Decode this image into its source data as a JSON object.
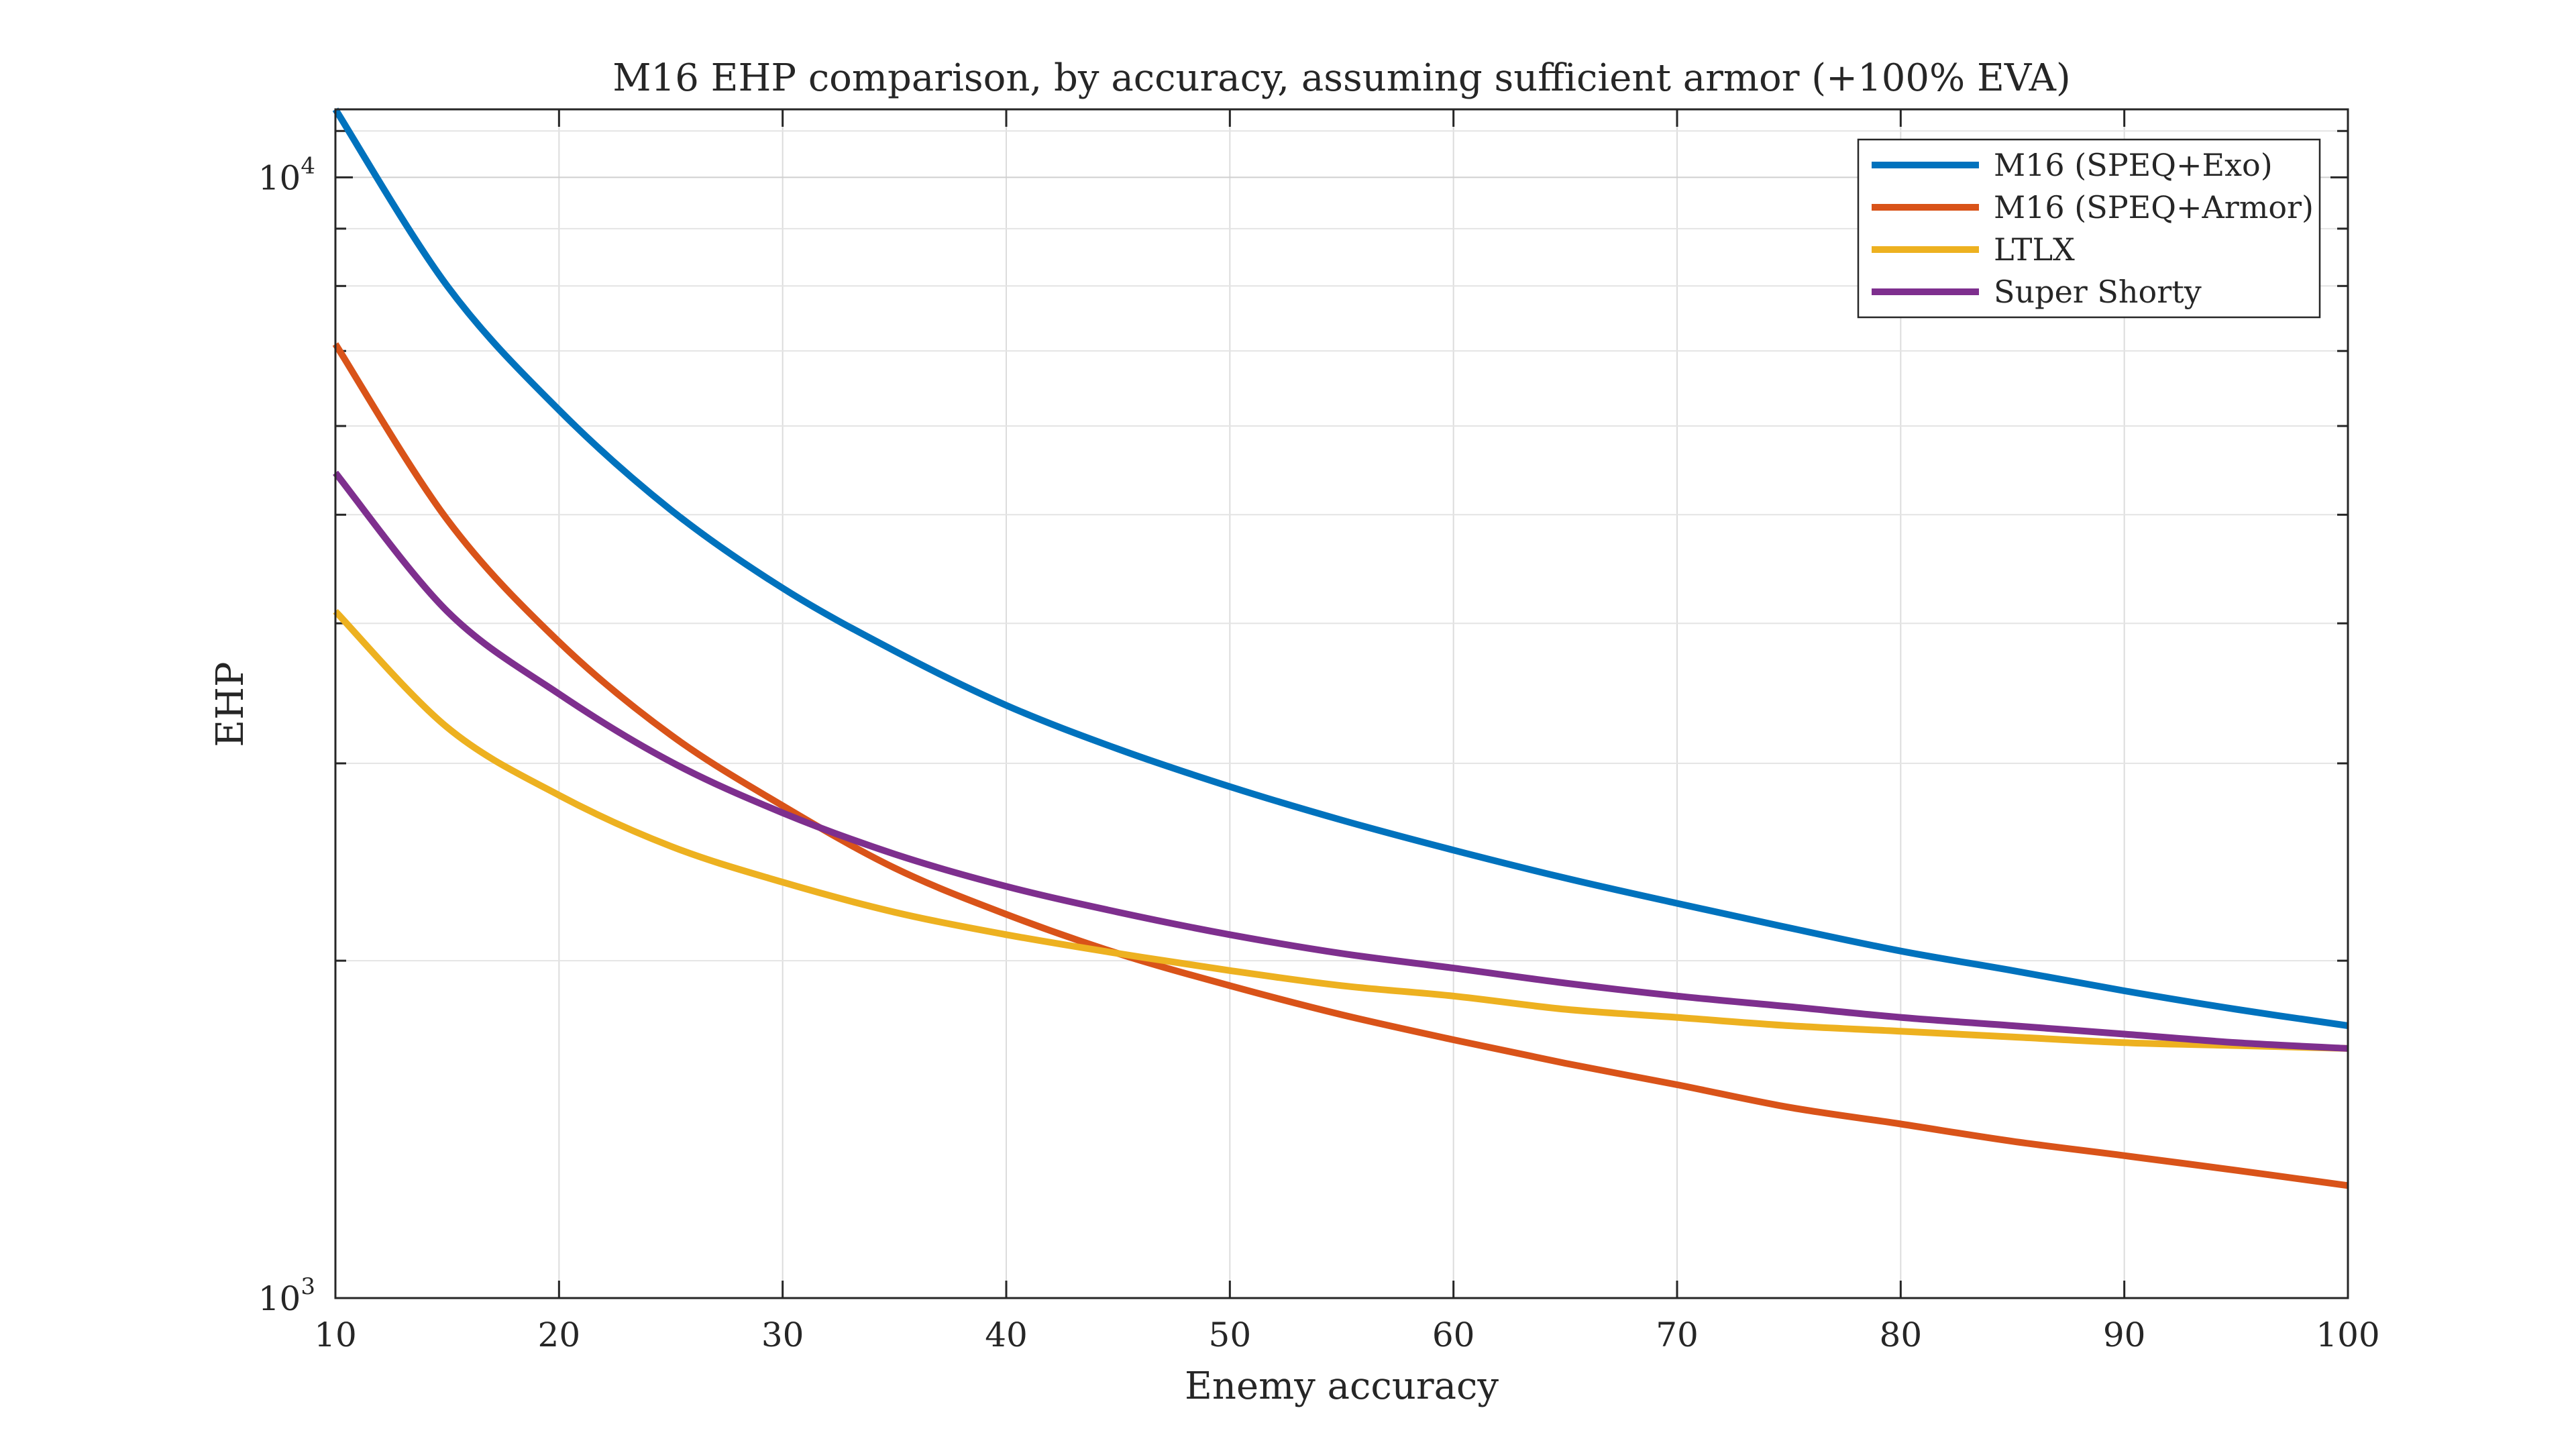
{
  "chart_data": {
    "type": "line",
    "title": "M16 EHP comparison, by accuracy, assuming sufficient armor (+100% EVA)",
    "xlabel": "Enemy accuracy",
    "ylabel": "EHP",
    "xlim": [
      10,
      100
    ],
    "ylim": [
      1000,
      11500
    ],
    "yscale": "log",
    "grid": true,
    "legend_position": "top-right",
    "x_ticks": [
      10,
      20,
      30,
      40,
      50,
      60,
      70,
      80,
      90,
      100
    ],
    "x_tick_labels": [
      "10",
      "20",
      "30",
      "40",
      "50",
      "60",
      "70",
      "80",
      "90",
      "100"
    ],
    "y_ticks": [
      {
        "value": 1000,
        "base": "10",
        "exponent": "3"
      },
      {
        "value": 10000,
        "base": "10",
        "exponent": "4"
      }
    ],
    "x": [
      10,
      15,
      20,
      25,
      30,
      35,
      40,
      45,
      50,
      55,
      60,
      65,
      70,
      75,
      80,
      85,
      90,
      95,
      100
    ],
    "series": [
      {
        "name": "M16 (SPEQ+Exo)",
        "color": "#0072BD",
        "values": [
          11500,
          8000,
          6200,
          5050,
          4300,
          3780,
          3380,
          3090,
          2860,
          2670,
          2510,
          2370,
          2250,
          2140,
          2040,
          1960,
          1880,
          1810,
          1750
        ]
      },
      {
        "name": "M16 (SPEQ+Armor)",
        "color": "#D95319",
        "values": [
          7100,
          4950,
          3850,
          3180,
          2750,
          2420,
          2200,
          2030,
          1900,
          1790,
          1700,
          1620,
          1550,
          1480,
          1430,
          1380,
          1340,
          1300,
          1260
        ]
      },
      {
        "name": "LTLX",
        "color": "#EDB120",
        "values": [
          4100,
          3230,
          2810,
          2530,
          2350,
          2210,
          2110,
          2030,
          1960,
          1900,
          1860,
          1810,
          1780,
          1750,
          1730,
          1710,
          1690,
          1680,
          1670
        ]
      },
      {
        "name": "Super Shorty",
        "color": "#7E2F8E",
        "values": [
          5450,
          4100,
          3460,
          3010,
          2710,
          2490,
          2330,
          2210,
          2110,
          2030,
          1970,
          1910,
          1860,
          1820,
          1780,
          1750,
          1720,
          1690,
          1670
        ]
      }
    ]
  }
}
